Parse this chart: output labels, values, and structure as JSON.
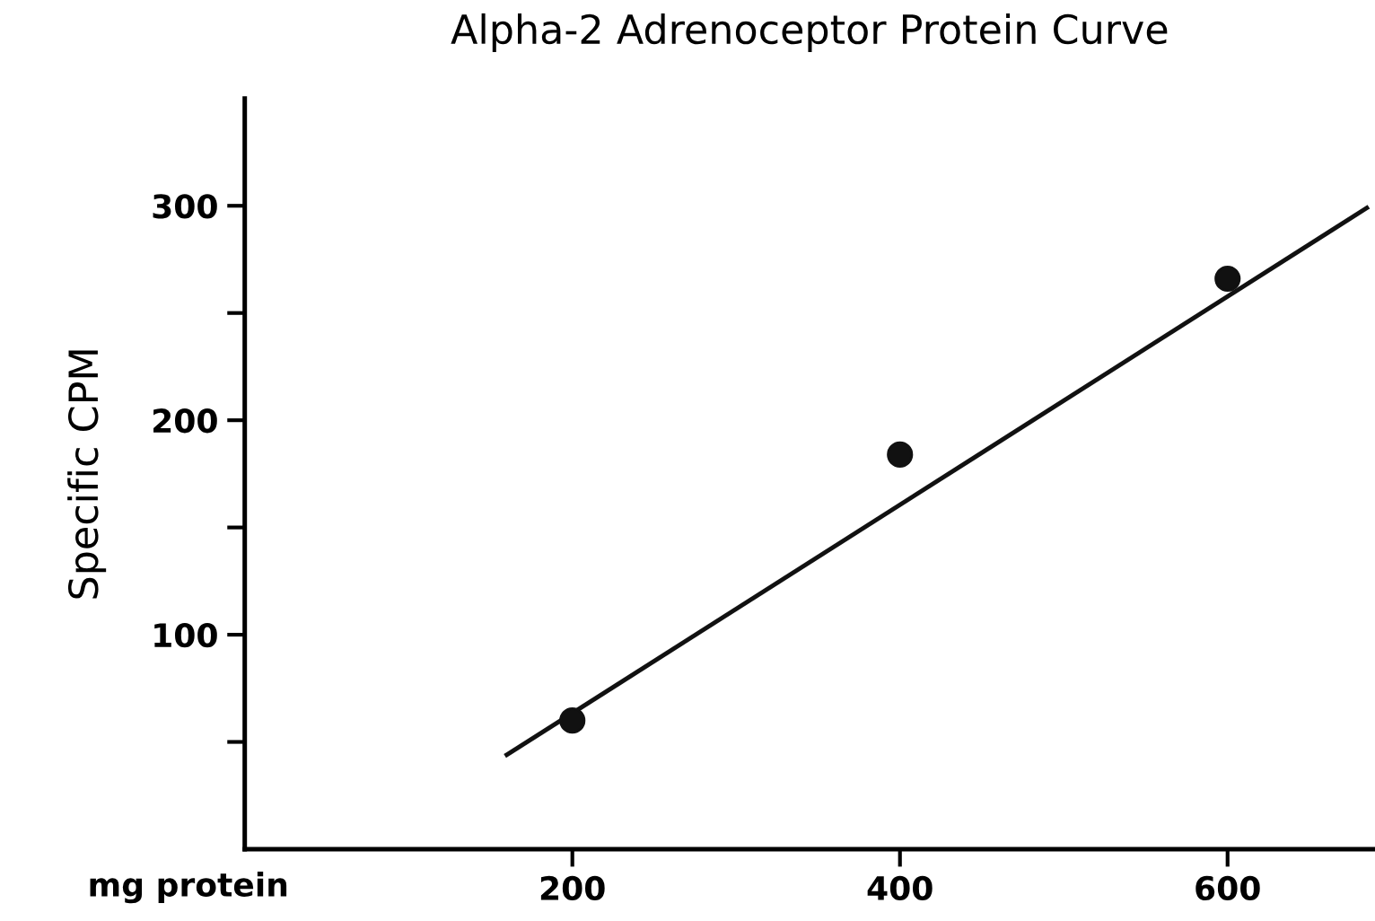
{
  "chart_data": {
    "type": "scatter",
    "title": "Alpha-2 Adrenoceptor Protein Curve",
    "xlabel": "mg protein",
    "ylabel": "Specific CPM",
    "xlim": [
      0,
      690
    ],
    "xticks": [
      200,
      400,
      600
    ],
    "ylim": [
      0,
      350
    ],
    "yticks": [
      {
        "value": 50,
        "label": null
      },
      100,
      {
        "value": 150,
        "label": null
      },
      200,
      {
        "value": 250,
        "label": null
      },
      300
    ],
    "grid": false,
    "legend": false,
    "marker": "circle",
    "series": [
      {
        "color": "#111111",
        "x": [
          200,
          400,
          600
        ],
        "values": [
          60,
          184,
          266
        ]
      },
      {
        "type": "line",
        "color": "#111111",
        "line_style": "solid",
        "marker": "none",
        "x": [
          160,
          685
        ],
        "values": [
          44,
          299
        ]
      }
    ]
  }
}
